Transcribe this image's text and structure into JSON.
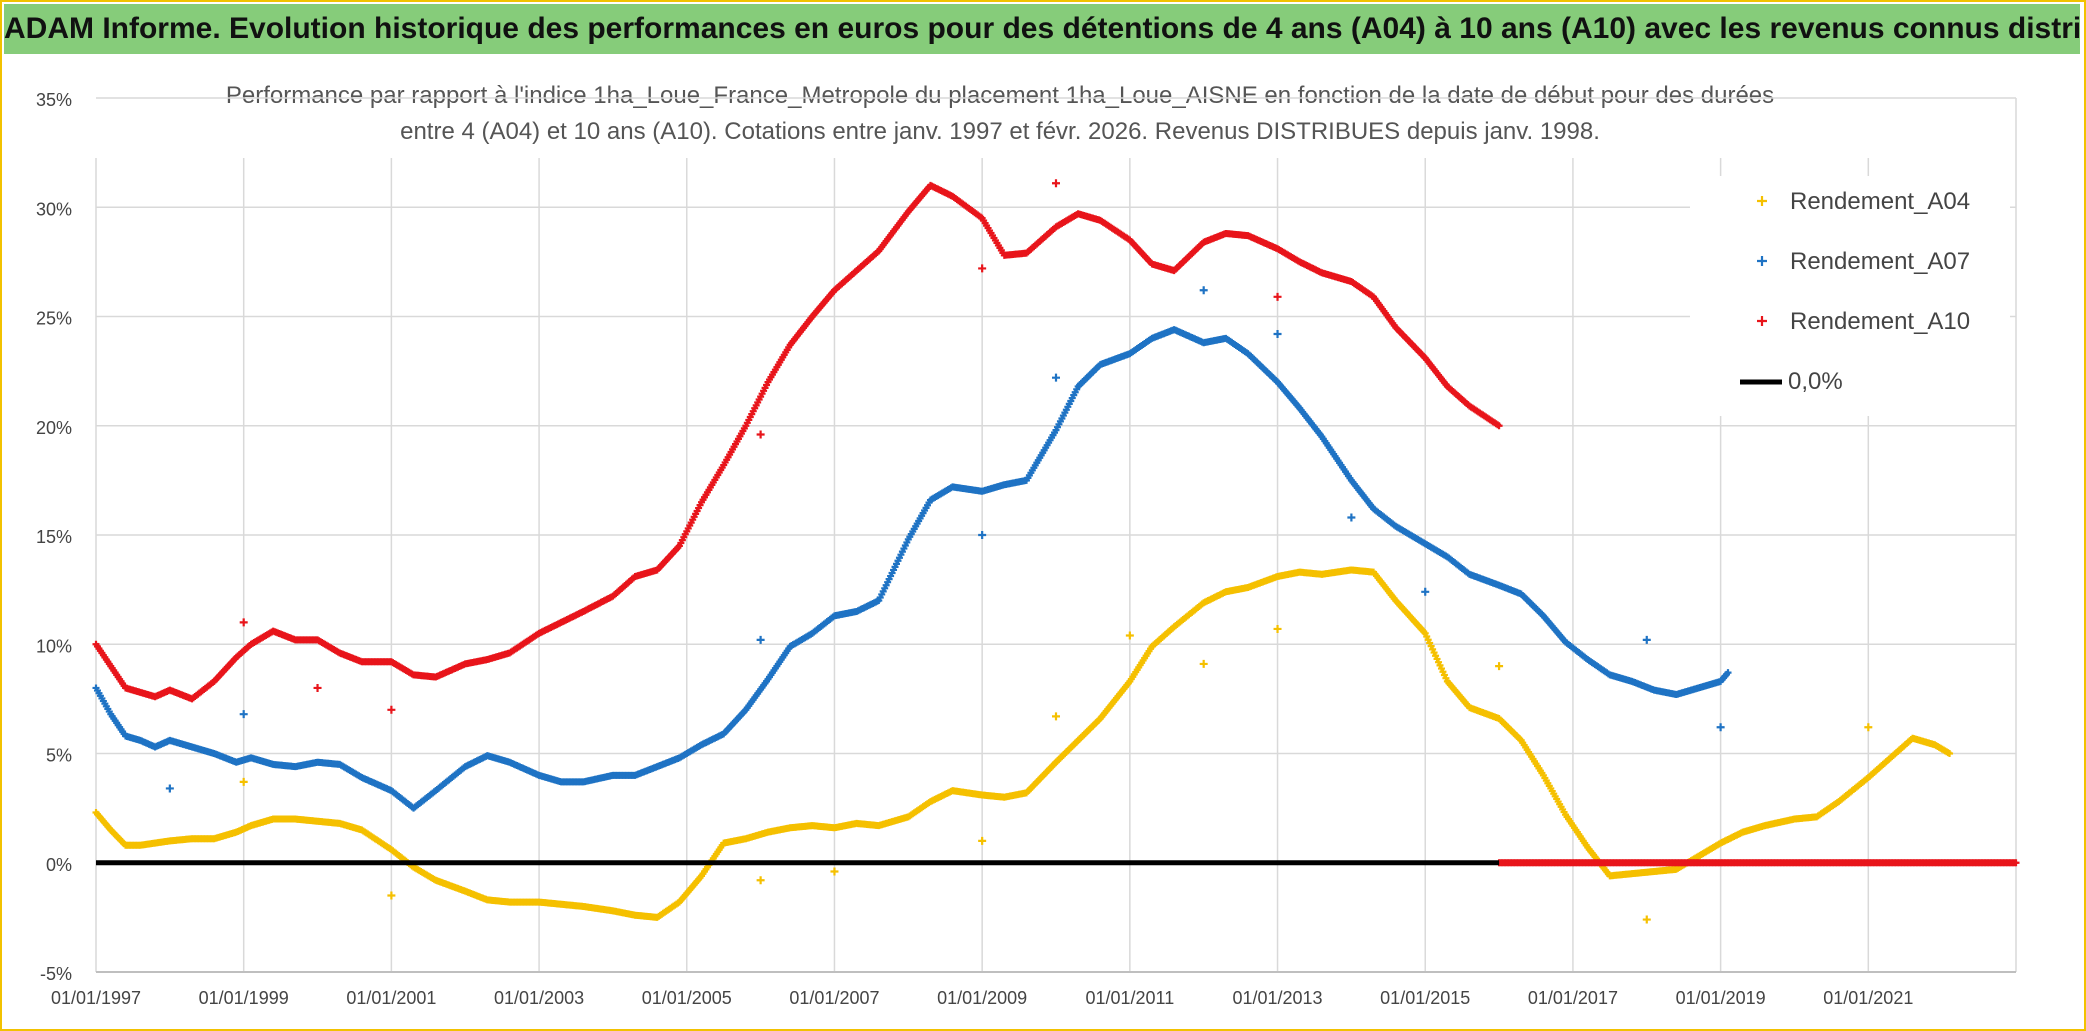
{
  "header": {
    "title": "ADAM Informe. Evolution historique des performances en euros pour des détentions de 4 ans (A04) à 10 ans (A10) avec les revenus connus distribués"
  },
  "chart_data": {
    "type": "scatter",
    "title_line1": "Performance par rapport à l'indice 1ha_Loue_France_Metropole  du placement 1ha_Loue_AISNE en fonction de la date de début pour des durées",
    "title_line2": "entre 4 (A04) et 10 ans (A10). Cotations entre janv. 1997 et févr. 2026. Revenus DISTRIBUES depuis janv. 1998.",
    "xlabel": "",
    "ylabel": "",
    "xlim": [
      1997.0,
      2023.0
    ],
    "ylim": [
      -5,
      35
    ],
    "y_ticks": [
      "-5%",
      "0%",
      "5%",
      "10%",
      "15%",
      "20%",
      "25%",
      "30%",
      "35%"
    ],
    "y_tick_values": [
      -5,
      0,
      5,
      10,
      15,
      20,
      25,
      30,
      35
    ],
    "x_ticks": [
      "01/01/1997",
      "01/01/1999",
      "01/01/2001",
      "01/01/2003",
      "01/01/2005",
      "01/01/2007",
      "01/01/2009",
      "01/01/2011",
      "01/01/2013",
      "01/01/2015",
      "01/01/2017",
      "01/01/2019",
      "01/01/2021"
    ],
    "x_tick_values": [
      1997,
      1999,
      2001,
      2003,
      2005,
      2007,
      2009,
      2011,
      2013,
      2015,
      2017,
      2019,
      2021
    ],
    "grid": true,
    "legend_position": "top-right",
    "series": [
      {
        "name": "Rendement_A04",
        "color": "#f5c000",
        "x": [
          1997.0,
          1997.2,
          1997.4,
          1997.6,
          1997.8,
          1998.0,
          1998.3,
          1998.6,
          1998.9,
          1999.1,
          1999.4,
          1999.7,
          2000.0,
          2000.3,
          2000.6,
          2001.0,
          2001.3,
          2001.6,
          2002.0,
          2002.3,
          2002.6,
          2003.0,
          2003.3,
          2003.6,
          2004.0,
          2004.3,
          2004.6,
          2004.9,
          2005.2,
          2005.5,
          2005.8,
          2006.1,
          2006.4,
          2006.7,
          2007.0,
          2007.3,
          2007.6,
          2008.0,
          2008.3,
          2008.6,
          2009.0,
          2009.3,
          2009.6,
          2010.0,
          2010.3,
          2010.6,
          2011.0,
          2011.3,
          2011.6,
          2012.0,
          2012.3,
          2012.6,
          2013.0,
          2013.3,
          2013.6,
          2014.0,
          2014.3,
          2014.6,
          2015.0,
          2015.3,
          2015.6,
          2016.0,
          2016.3,
          2016.6,
          2016.9,
          2017.2,
          2017.5,
          2017.8,
          2018.1,
          2018.4,
          2018.7,
          2019.0,
          2019.3,
          2019.6,
          2020.0,
          2020.3,
          2020.6,
          2021.0,
          2021.3,
          2021.6,
          2021.9,
          2022.1
        ],
        "y": [
          2.3,
          1.5,
          0.8,
          0.8,
          0.9,
          1.0,
          1.1,
          1.1,
          1.4,
          1.7,
          2.0,
          2.0,
          1.9,
          1.8,
          1.5,
          0.6,
          -0.2,
          -0.8,
          -1.3,
          -1.7,
          -1.8,
          -1.8,
          -1.9,
          -2.0,
          -2.2,
          -2.4,
          -2.5,
          -1.8,
          -0.6,
          0.9,
          1.1,
          1.4,
          1.6,
          1.7,
          1.6,
          1.8,
          1.7,
          2.1,
          2.8,
          3.3,
          3.1,
          3.0,
          3.2,
          4.6,
          5.6,
          6.6,
          8.3,
          9.9,
          10.8,
          11.9,
          12.4,
          12.6,
          13.1,
          13.3,
          13.2,
          13.4,
          13.3,
          12.0,
          10.5,
          8.3,
          7.1,
          6.6,
          5.6,
          4.0,
          2.2,
          0.7,
          -0.6,
          -0.5,
          -0.4,
          -0.3,
          0.3,
          0.9,
          1.4,
          1.7,
          2.0,
          2.1,
          2.8,
          3.9,
          4.8,
          5.7,
          5.4,
          5.0
        ],
        "outliers_x": [
          1999.0,
          2001.0,
          2006.0,
          2007.0,
          2009.0,
          2010.0,
          2011.0,
          2012.0,
          2013.0,
          2016.0,
          2018.0,
          2021.0
        ],
        "outliers_y": [
          3.7,
          -1.5,
          -0.8,
          -0.4,
          1.0,
          6.7,
          10.4,
          9.1,
          10.7,
          9.0,
          -2.6,
          6.2
        ]
      },
      {
        "name": "Rendement_A07",
        "color": "#1f73c4",
        "x": [
          1997.0,
          1997.2,
          1997.4,
          1997.6,
          1997.8,
          1998.0,
          1998.3,
          1998.6,
          1998.9,
          1999.1,
          1999.4,
          1999.7,
          2000.0,
          2000.3,
          2000.6,
          2001.0,
          2001.3,
          2001.6,
          2002.0,
          2002.3,
          2002.6,
          2003.0,
          2003.3,
          2003.6,
          2004.0,
          2004.3,
          2004.6,
          2004.9,
          2005.2,
          2005.5,
          2005.8,
          2006.1,
          2006.4,
          2006.7,
          2007.0,
          2007.3,
          2007.6,
          2008.0,
          2008.3,
          2008.6,
          2009.0,
          2009.3,
          2009.6,
          2010.0,
          2010.3,
          2010.6,
          2011.0,
          2011.3,
          2011.6,
          2012.0,
          2012.3,
          2012.6,
          2013.0,
          2013.3,
          2013.6,
          2014.0,
          2014.3,
          2014.6,
          2015.0,
          2015.3,
          2015.6,
          2016.0,
          2016.3,
          2016.6,
          2016.9,
          2017.2,
          2017.5,
          2017.8,
          2018.1,
          2018.4,
          2018.7,
          2019.0,
          2019.1
        ],
        "y": [
          8.0,
          6.8,
          5.8,
          5.6,
          5.3,
          5.6,
          5.3,
          5.0,
          4.6,
          4.8,
          4.5,
          4.4,
          4.6,
          4.5,
          3.9,
          3.3,
          2.5,
          3.3,
          4.4,
          4.9,
          4.6,
          4.0,
          3.7,
          3.7,
          4.0,
          4.0,
          4.4,
          4.8,
          5.4,
          5.9,
          7.0,
          8.4,
          9.9,
          10.5,
          11.3,
          11.5,
          12.0,
          14.8,
          16.6,
          17.2,
          17.0,
          17.3,
          17.5,
          19.8,
          21.8,
          22.8,
          23.3,
          24.0,
          24.4,
          23.8,
          24.0,
          23.3,
          22.0,
          20.8,
          19.5,
          17.5,
          16.2,
          15.4,
          14.6,
          14.0,
          13.2,
          12.7,
          12.3,
          11.3,
          10.1,
          9.3,
          8.6,
          8.3,
          7.9,
          7.7,
          8.0,
          8.3,
          8.7
        ],
        "outliers_x": [
          1998.0,
          1999.0,
          2006.0,
          2009.0,
          2010.0,
          2012.0,
          2013.0,
          2014.0,
          2015.0,
          2018.0,
          2019.0
        ],
        "outliers_y": [
          3.4,
          6.8,
          10.2,
          15.0,
          22.2,
          26.2,
          24.2,
          15.8,
          12.4,
          10.2,
          6.2
        ]
      },
      {
        "name": "Rendement_A10",
        "color": "#e8151b",
        "x": [
          1997.0,
          1997.2,
          1997.4,
          1997.6,
          1997.8,
          1998.0,
          1998.3,
          1998.6,
          1998.9,
          1999.1,
          1999.4,
          1999.7,
          2000.0,
          2000.3,
          2000.6,
          2001.0,
          2001.3,
          2001.6,
          2002.0,
          2002.3,
          2002.6,
          2003.0,
          2003.3,
          2003.6,
          2004.0,
          2004.3,
          2004.6,
          2004.9,
          2005.2,
          2005.5,
          2005.8,
          2006.1,
          2006.4,
          2006.7,
          2007.0,
          2007.3,
          2007.6,
          2008.0,
          2008.3,
          2008.6,
          2009.0,
          2009.3,
          2009.6,
          2010.0,
          2010.3,
          2010.6,
          2011.0,
          2011.3,
          2011.6,
          2012.0,
          2012.3,
          2012.6,
          2013.0,
          2013.3,
          2013.6,
          2014.0,
          2014.3,
          2014.6,
          2015.0,
          2015.3,
          2015.6,
          2016.0
        ],
        "y": [
          10.0,
          9.0,
          8.0,
          7.8,
          7.6,
          7.9,
          7.5,
          8.3,
          9.4,
          10.0,
          10.6,
          10.2,
          10.2,
          9.6,
          9.2,
          9.2,
          8.6,
          8.5,
          9.1,
          9.3,
          9.6,
          10.5,
          11.0,
          11.5,
          12.2,
          13.1,
          13.4,
          14.5,
          16.5,
          18.2,
          20.0,
          22.0,
          23.7,
          25.0,
          26.2,
          27.1,
          28.0,
          29.8,
          31.0,
          30.5,
          29.5,
          27.8,
          27.9,
          29.1,
          29.7,
          29.4,
          28.5,
          27.4,
          27.1,
          28.4,
          28.8,
          28.7,
          28.1,
          27.5,
          27.0,
          26.6,
          25.9,
          24.5,
          23.1,
          21.8,
          20.9,
          20.0
        ],
        "outliers_x": [
          1999.0,
          2000.0,
          2001.0,
          2006.0,
          2009.0,
          2010.0,
          2013.0
        ],
        "outliers_y": [
          11.0,
          8.0,
          7.0,
          19.6,
          27.2,
          31.1,
          25.9
        ],
        "flat_zero_from": 2016.0,
        "flat_zero_to": 2023.0
      },
      {
        "name": "0,0%",
        "color": "#000000",
        "x": [
          1997.0,
          2016.0
        ],
        "y": [
          0,
          0
        ]
      }
    ]
  }
}
